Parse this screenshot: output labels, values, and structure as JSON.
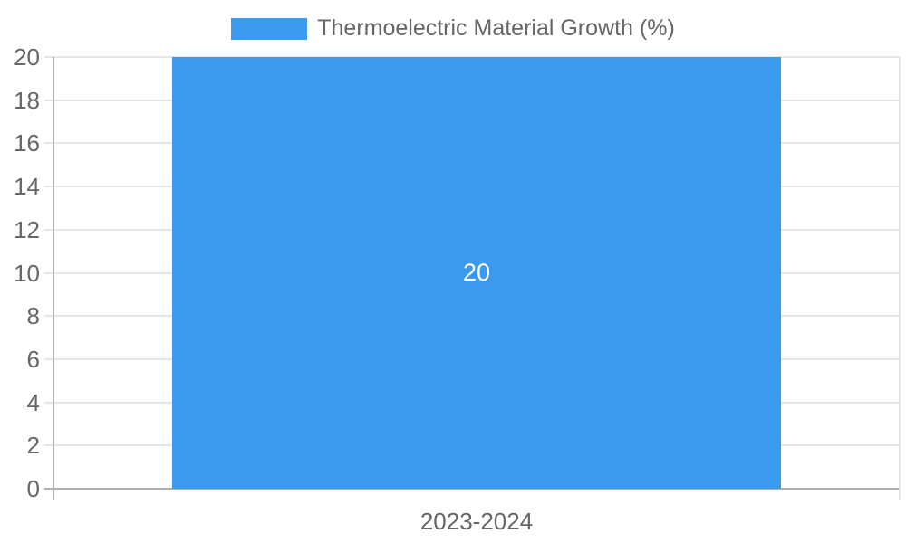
{
  "chart_data": {
    "type": "bar",
    "categories": [
      "2023-2024"
    ],
    "series": [
      {
        "name": "Thermoelectric Material Growth (%)",
        "values": [
          20
        ],
        "color": "#3b9aee"
      }
    ],
    "value_labels": [
      "20"
    ],
    "ylim": [
      0,
      20
    ],
    "ytick_step": 2,
    "yticks": [
      0,
      2,
      4,
      6,
      8,
      10,
      12,
      14,
      16,
      18,
      20
    ],
    "grid": true,
    "legend_position": "top",
    "colors": {
      "bar": "#3b9aee",
      "grid_line": "#e6e6e6",
      "zero_line": "#b0b0b0",
      "axis_text": "#666666",
      "value_label": "#ffffff",
      "background": "#ffffff"
    }
  }
}
